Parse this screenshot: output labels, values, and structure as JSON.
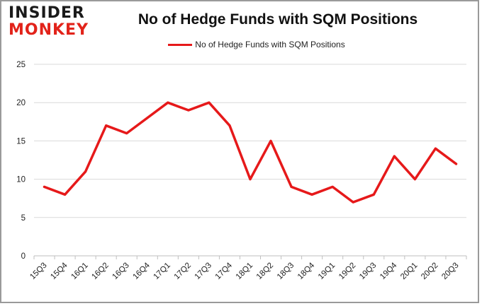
{
  "logo": {
    "line1": "INSIDER",
    "line2": "MONKEY"
  },
  "chart_data": {
    "type": "line",
    "title": "No of Hedge Funds with SQM Positions",
    "xlabel": "",
    "ylabel": "",
    "categories": [
      "15Q3",
      "15Q4",
      "16Q1",
      "16Q2",
      "16Q3",
      "16Q4",
      "17Q1",
      "17Q2",
      "17Q3",
      "17Q4",
      "18Q1",
      "18Q2",
      "18Q3",
      "18Q4",
      "19Q1",
      "19Q2",
      "19Q3",
      "19Q4",
      "20Q1",
      "20Q2",
      "20Q3"
    ],
    "series": [
      {
        "name": "No of Hedge Funds with SQM Positions",
        "color": "#e6191a",
        "values": [
          9,
          8,
          11,
          17,
          16,
          18,
          20,
          19,
          20,
          17,
          10,
          15,
          9,
          8,
          9,
          7,
          8,
          13,
          10,
          14,
          12
        ]
      }
    ],
    "yticks": [
      0,
      5,
      10,
      15,
      20,
      25
    ],
    "ylim": [
      0,
      25
    ],
    "grid": true,
    "legend_position": "top-center"
  }
}
